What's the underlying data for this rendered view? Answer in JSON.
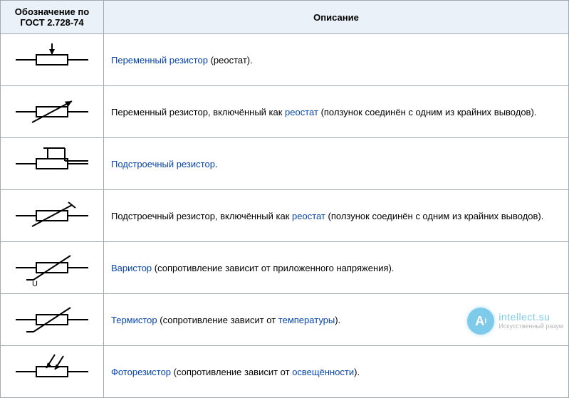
{
  "table": {
    "header_bg": "#eaf1f8",
    "border_color": "#a2a9b1",
    "link_color": "#0645ad",
    "text_color": "#000000",
    "columns": [
      {
        "label": "Обозначение\nпо ГОСТ 2.728-74",
        "width": 145
      },
      {
        "label": "Описание"
      }
    ],
    "rows": [
      {
        "symbol": "variable-resistor",
        "parts": [
          {
            "type": "link",
            "text": "Переменный резистор"
          },
          {
            "type": "text",
            "text": " (реостат)."
          }
        ]
      },
      {
        "symbol": "variable-resistor-rheostat",
        "parts": [
          {
            "type": "text",
            "text": "Переменный резистор, включённый как "
          },
          {
            "type": "link",
            "text": "реостат"
          },
          {
            "type": "text",
            "text": " (ползунок соединён с одним из крайних выводов)."
          }
        ]
      },
      {
        "symbol": "trimming-resistor",
        "parts": [
          {
            "type": "link",
            "text": "Подстроечный резистор"
          },
          {
            "type": "text",
            "text": "."
          }
        ]
      },
      {
        "symbol": "trimming-resistor-rheostat",
        "parts": [
          {
            "type": "text",
            "text": "Подстроечный резистор, включённый как "
          },
          {
            "type": "link",
            "text": "реостат"
          },
          {
            "type": "text",
            "text": " (ползунок соединён с одним из крайних выводов)."
          }
        ]
      },
      {
        "symbol": "varistor",
        "sublabel": "U",
        "parts": [
          {
            "type": "link",
            "text": "Варистор"
          },
          {
            "type": "text",
            "text": " (сопротивление зависит от приложенного напряжения)."
          }
        ]
      },
      {
        "symbol": "thermistor",
        "parts": [
          {
            "type": "link",
            "text": "Термистор"
          },
          {
            "type": "text",
            "text": " (сопротивление зависит от "
          },
          {
            "type": "link",
            "text": "температуры"
          },
          {
            "type": "text",
            "text": ")."
          }
        ]
      },
      {
        "symbol": "photoresistor",
        "parts": [
          {
            "type": "link",
            "text": "Фоторезистор"
          },
          {
            "type": "text",
            "text": " (сопротивление зависит от "
          },
          {
            "type": "link",
            "text": "освещённости"
          },
          {
            "type": "text",
            "text": ")."
          }
        ]
      }
    ]
  },
  "watermark": {
    "icon_letter": "A",
    "icon_sub": "i",
    "line1": "intellect.su",
    "line2": "Искусственный разум",
    "icon_color": "#2aa7df"
  }
}
